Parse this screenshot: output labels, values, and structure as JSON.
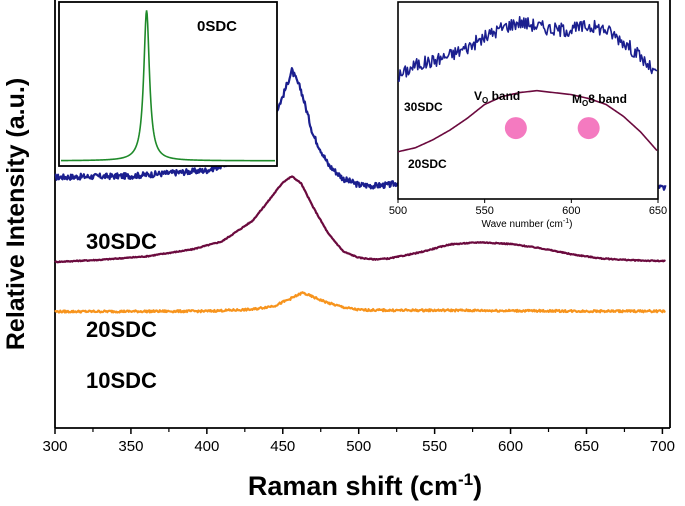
{
  "chart_data": [
    {
      "type": "line",
      "id": "main",
      "title": "",
      "xlabel": "Raman shift (cm",
      "xlabel_sup": "-1",
      "xlabel_close": ")",
      "ylabel": "Relative Intensity (a.u.)",
      "xlim": [
        300,
        705
      ],
      "ylim": [
        0,
        100
      ],
      "xticks": [
        300,
        350,
        400,
        450,
        500,
        550,
        600,
        650,
        700
      ],
      "y_tick_labels_shown": false,
      "series": [
        {
          "name": "30SDC",
          "color": "#1b1f8f",
          "x": [
            300,
            350,
            400,
            420,
            440,
            450,
            456,
            462,
            470,
            480,
            490,
            500,
            510,
            520,
            540,
            560,
            580,
            600,
            620,
            640,
            660,
            680,
            700
          ],
          "y": [
            58.6,
            58.9,
            60.2,
            62.5,
            69,
            77.5,
            83.5,
            79,
            68.5,
            61.5,
            58.2,
            56.8,
            56.6,
            56.8,
            58.4,
            60.4,
            61.4,
            60.6,
            58.4,
            57.2,
            56.5,
            56.2,
            56.1
          ],
          "noise": 0.7
        },
        {
          "name": "20SDC",
          "color": "#6b0a3e",
          "x": [
            300,
            330,
            360,
            390,
            410,
            430,
            440,
            450,
            456,
            462,
            470,
            480,
            490,
            500,
            510,
            520,
            540,
            560,
            580,
            600,
            620,
            640,
            660,
            680,
            700
          ],
          "y": [
            38.8,
            39.3,
            40.1,
            41.7,
            43.6,
            48.4,
            52.8,
            57.4,
            58.8,
            57.2,
            51.6,
            45.4,
            41.2,
            39.8,
            39.4,
            39.6,
            41,
            42.9,
            43.4,
            43,
            42,
            40.6,
            39.6,
            39.2,
            39
          ],
          "noise": 0.12
        },
        {
          "name": "10SDC",
          "color": "#f7941d",
          "x": [
            300,
            400,
            430,
            445,
            455,
            463,
            470,
            480,
            490,
            500,
            520,
            560,
            600,
            650,
            700
          ],
          "y": [
            27.2,
            27.3,
            27.7,
            28.6,
            30.2,
            31.6,
            30.6,
            29.2,
            28.2,
            27.6,
            27.5,
            27.5,
            27.4,
            27.3,
            27.3
          ],
          "noise": 0.25
        }
      ],
      "annotations": [
        "30SDC",
        "20SDC",
        "10SDC"
      ]
    },
    {
      "type": "line",
      "id": "inset_left",
      "title": "",
      "xlim": [
        0,
        100
      ],
      "ylim": [
        0,
        100
      ],
      "ticks_shown": false,
      "series": [
        {
          "name": "0SDC",
          "color": "#1f8a2a",
          "peak_x": 40,
          "peak_height": 94,
          "baseline": 2,
          "width": 1.6
        }
      ],
      "annotations": [
        "0SDC"
      ]
    },
    {
      "type": "line",
      "id": "inset_right",
      "title": "",
      "xlabel": "Wave number (cm",
      "xlabel_sup": "-1",
      "xlabel_close": ")",
      "xlim": [
        500,
        650
      ],
      "ylim": [
        0,
        100
      ],
      "xticks": [
        500,
        550,
        600,
        650
      ],
      "series": [
        {
          "name": "30SDC",
          "color": "#1b1f8f",
          "x": [
            500,
            510,
            520,
            530,
            540,
            550,
            560,
            570,
            580,
            590,
            600,
            610,
            620,
            630,
            640,
            650
          ],
          "y": [
            62,
            68,
            70,
            73,
            77,
            82,
            87,
            90,
            88,
            86,
            86,
            88,
            86,
            80,
            72,
            62
          ],
          "noise": 3.5
        },
        {
          "name": "20SDC",
          "color": "#6b0a3e",
          "x": [
            500,
            510,
            520,
            530,
            540,
            550,
            560,
            570,
            580,
            590,
            600,
            610,
            620,
            630,
            640,
            650
          ],
          "y": [
            24,
            26,
            30,
            35,
            41,
            48,
            52,
            54,
            55,
            54,
            53,
            51,
            48,
            42,
            34,
            24
          ],
          "noise": 0
        }
      ],
      "markers": [
        {
          "label": "Vo band",
          "x": 568,
          "y": 36,
          "color": "#f47ac0"
        },
        {
          "label": "Mo8 band",
          "x": 610,
          "y": 36,
          "color": "#f47ac0"
        }
      ],
      "annotations": [
        "30SDC",
        "20SDC"
      ]
    }
  ],
  "labels": {
    "vo_main": "V",
    "vo_sub": "O",
    "vo_rest": " band",
    "mo_main": "M",
    "mo_sub": "O",
    "mo_rest": "8 band"
  }
}
